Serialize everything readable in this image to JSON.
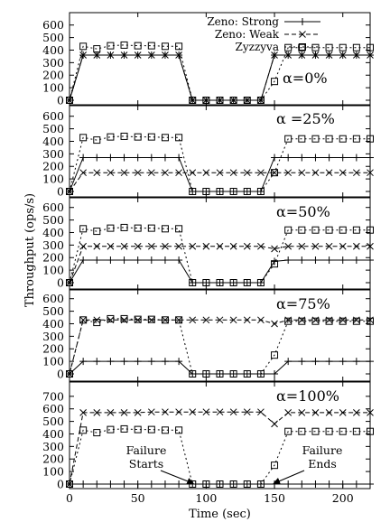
{
  "chart_data": {
    "type": "line",
    "xlabel": "Time (sec)",
    "ylabel": "Throughput (ops/s)",
    "xlim": [
      0,
      220
    ],
    "ylim": [
      0,
      750
    ],
    "x_ticks": [
      0,
      50,
      100,
      150,
      200
    ],
    "y_ticks": [
      0,
      100,
      200,
      300,
      400,
      500,
      600,
      700
    ],
    "grid": false,
    "legend": {
      "placement": "top-center",
      "entries": [
        {
          "name": "Zeno: Strong",
          "marker": "plus",
          "line": "solid"
        },
        {
          "name": "Zeno: Weak",
          "marker": "cross",
          "line": "dashed"
        },
        {
          "name": "Zyzzyva",
          "marker": "square",
          "line": "dotted"
        }
      ]
    },
    "x": [
      0,
      10,
      20,
      30,
      40,
      50,
      60,
      70,
      80,
      90,
      100,
      110,
      120,
      130,
      140,
      150,
      160,
      170,
      180,
      190,
      200,
      210,
      220
    ],
    "panels": [
      {
        "label": "α=0%",
        "series": [
          {
            "name": "Zeno: Strong",
            "values": [
              0,
              360,
              360,
              360,
              360,
              360,
              360,
              360,
              360,
              0,
              0,
              0,
              0,
              0,
              0,
              360,
              360,
              360,
              360,
              360,
              360,
              360,
              360
            ]
          },
          {
            "name": "Zeno: Weak",
            "values": [
              0,
              360,
              360,
              360,
              360,
              360,
              360,
              360,
              360,
              0,
              0,
              0,
              0,
              0,
              0,
              360,
              360,
              360,
              360,
              360,
              360,
              360,
              360
            ]
          },
          {
            "name": "Zyzzyva",
            "values": [
              0,
              430,
              410,
              435,
              440,
              435,
              435,
              430,
              430,
              0,
              0,
              0,
              0,
              0,
              0,
              150,
              420,
              420,
              420,
              420,
              420,
              420,
              420
            ]
          }
        ]
      },
      {
        "label": "α =25%",
        "series": [
          {
            "name": "Zeno: Strong",
            "values": [
              0,
              270,
              270,
              270,
              270,
              270,
              270,
              270,
              270,
              0,
              0,
              0,
              0,
              0,
              0,
              270,
              270,
              270,
              270,
              270,
              270,
              270,
              270
            ]
          },
          {
            "name": "Zeno: Weak",
            "values": [
              0,
              150,
              150,
              150,
              150,
              150,
              150,
              150,
              150,
              150,
              150,
              150,
              150,
              150,
              150,
              150,
              150,
              150,
              150,
              150,
              150,
              150,
              150
            ]
          },
          {
            "name": "Zyzzyva",
            "values": [
              0,
              430,
              410,
              435,
              440,
              435,
              435,
              430,
              430,
              0,
              0,
              0,
              0,
              0,
              0,
              150,
              420,
              420,
              420,
              420,
              420,
              420,
              420
            ]
          }
        ]
      },
      {
        "label": "α=50%",
        "series": [
          {
            "name": "Zeno: Strong",
            "values": [
              0,
              180,
              180,
              180,
              180,
              180,
              180,
              180,
              180,
              0,
              0,
              0,
              0,
              0,
              0,
              170,
              180,
              180,
              180,
              180,
              180,
              180,
              180
            ]
          },
          {
            "name": "Zeno: Weak",
            "values": [
              0,
              290,
              290,
              290,
              290,
              290,
              290,
              290,
              290,
              290,
              290,
              290,
              290,
              290,
              290,
              270,
              290,
              290,
              290,
              290,
              290,
              290,
              290
            ]
          },
          {
            "name": "Zyzzyva",
            "values": [
              0,
              430,
              410,
              435,
              440,
              435,
              435,
              430,
              430,
              0,
              0,
              0,
              0,
              0,
              0,
              150,
              420,
              420,
              420,
              420,
              420,
              420,
              420
            ]
          }
        ]
      },
      {
        "label": "α=75%",
        "series": [
          {
            "name": "Zeno: Strong",
            "values": [
              0,
              100,
              100,
              100,
              100,
              100,
              100,
              100,
              100,
              0,
              0,
              0,
              0,
              0,
              0,
              0,
              100,
              100,
              100,
              100,
              100,
              100,
              100
            ]
          },
          {
            "name": "Zeno: Weak",
            "values": [
              0,
              430,
              430,
              430,
              430,
              430,
              430,
              430,
              430,
              430,
              430,
              430,
              430,
              430,
              430,
              400,
              430,
              430,
              430,
              430,
              430,
              430,
              430
            ]
          },
          {
            "name": "Zyzzyva",
            "values": [
              0,
              430,
              410,
              440,
              440,
              435,
              435,
              430,
              430,
              0,
              0,
              0,
              0,
              0,
              0,
              150,
              420,
              420,
              420,
              420,
              420,
              420,
              420
            ]
          }
        ]
      },
      {
        "label": "α=100%",
        "series": [
          {
            "name": "Zeno: Strong",
            "values": [
              0,
              0,
              0,
              0,
              0,
              0,
              0,
              0,
              0,
              0,
              0,
              0,
              0,
              0,
              0,
              0,
              0,
              0,
              0,
              0,
              0,
              0,
              0
            ]
          },
          {
            "name": "Zeno: Weak",
            "values": [
              0,
              570,
              570,
              570,
              570,
              570,
              575,
              575,
              575,
              575,
              575,
              575,
              575,
              575,
              575,
              480,
              570,
              570,
              570,
              570,
              570,
              570,
              570
            ]
          },
          {
            "name": "Zyzzyva",
            "values": [
              0,
              430,
              410,
              435,
              440,
              435,
              435,
              430,
              430,
              0,
              0,
              0,
              0,
              0,
              0,
              150,
              420,
              420,
              420,
              420,
              420,
              420,
              420
            ]
          }
        ]
      }
    ],
    "annotations": [
      {
        "text": [
          "Failure",
          "Starts"
        ],
        "points_to": {
          "panel": 4,
          "x": 90,
          "y": 0
        }
      },
      {
        "text": [
          "Failure",
          "Ends"
        ],
        "points_to": {
          "panel": 4,
          "x": 150,
          "y": 0
        }
      }
    ]
  }
}
